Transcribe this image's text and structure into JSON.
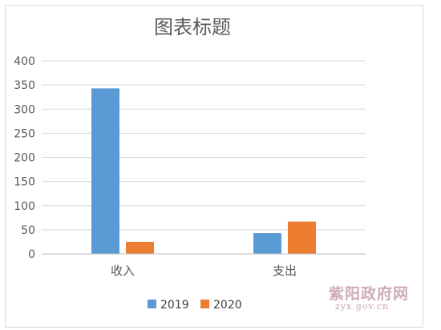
{
  "chart_data": {
    "type": "bar",
    "title": "图表标题",
    "categories": [
      "收入",
      "支出"
    ],
    "series": [
      {
        "name": "2019",
        "values": [
          343,
          43
        ],
        "color": "#5b9bd5"
      },
      {
        "name": "2020",
        "values": [
          25,
          67
        ],
        "color": "#ed7d31"
      }
    ],
    "ylim": [
      0,
      400
    ],
    "yticks": [
      "0",
      "50",
      "100",
      "150",
      "200",
      "250",
      "300",
      "350",
      "400"
    ],
    "grid": true,
    "legend_position": "bottom"
  },
  "watermark": {
    "main": "紫阳政府网",
    "sub": "zyx.gov.cn",
    "color": "#c9a3b4"
  }
}
